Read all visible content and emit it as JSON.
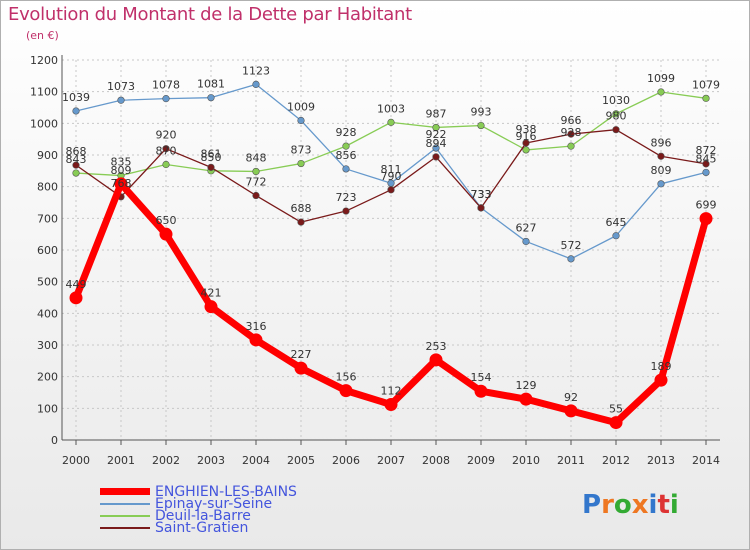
{
  "title": "Evolution du Montant de la Dette par Habitant",
  "subtitle": "(en €)",
  "logo_text": "Proxiti",
  "chart_data": {
    "type": "line",
    "title": "Evolution du Montant de la Dette par Habitant",
    "subtitle": "(en €)",
    "xlabel": "",
    "ylabel": "",
    "categories": [
      "2000",
      "2001",
      "2002",
      "2003",
      "2004",
      "2005",
      "2006",
      "2007",
      "2008",
      "2009",
      "2010",
      "2011",
      "2012",
      "2013",
      "2014"
    ],
    "ylim": [
      0,
      1200
    ],
    "yticks": [
      "0",
      "100",
      "200",
      "300",
      "400",
      "500",
      "600",
      "700",
      "800",
      "900",
      "1000",
      "1100",
      "1200"
    ],
    "grid": true,
    "legend_position": "bottom-left",
    "series": [
      {
        "name": "ENGHIEN-LES-BAINS",
        "color": "#ff0000",
        "values": [
          449,
          809,
          650,
          421,
          316,
          227,
          156,
          112,
          253,
          154,
          129,
          92,
          55,
          189,
          699
        ]
      },
      {
        "name": "Epinay-sur-Seine",
        "color": "#6699cc",
        "values": [
          1039,
          1073,
          1078,
          1081,
          1123,
          1009,
          856,
          811,
          922,
          733,
          627,
          572,
          645,
          809,
          845
        ]
      },
      {
        "name": "Deuil-la-Barre",
        "color": "#88cc55",
        "values": [
          843,
          835,
          870,
          850,
          848,
          873,
          928,
          1003,
          987,
          993,
          916,
          928,
          1030,
          1099,
          1079
        ]
      },
      {
        "name": "Saint-Gratien",
        "color": "#7a1a1a",
        "values": [
          868,
          768,
          920,
          861,
          772,
          688,
          723,
          790,
          894,
          733,
          938,
          966,
          980,
          896,
          872
        ]
      }
    ]
  }
}
